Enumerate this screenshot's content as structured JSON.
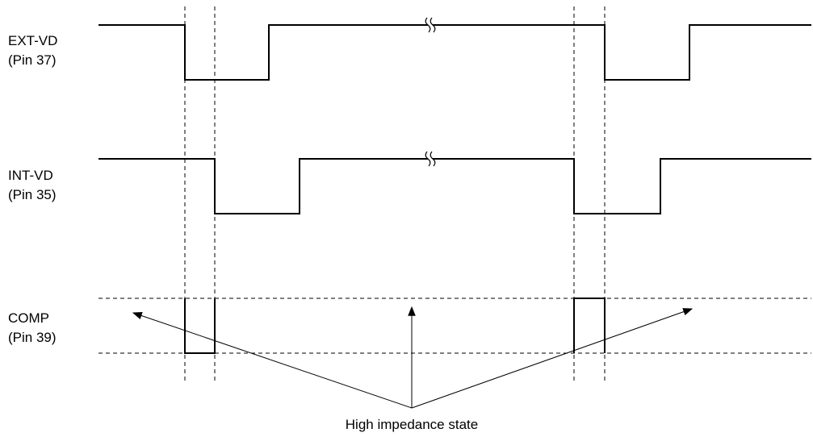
{
  "signals": [
    {
      "id": "ext_vd",
      "name": "EXT-VD",
      "pin": "(Pin 37)"
    },
    {
      "id": "int_vd",
      "name": "INT-VD",
      "pin": "(Pin 35)"
    },
    {
      "id": "comp",
      "name": "COMP",
      "pin": "(Pin 39)"
    }
  ],
  "annotation": "High impedance state",
  "colors": {
    "line": "#000000",
    "background": "#ffffff"
  }
}
